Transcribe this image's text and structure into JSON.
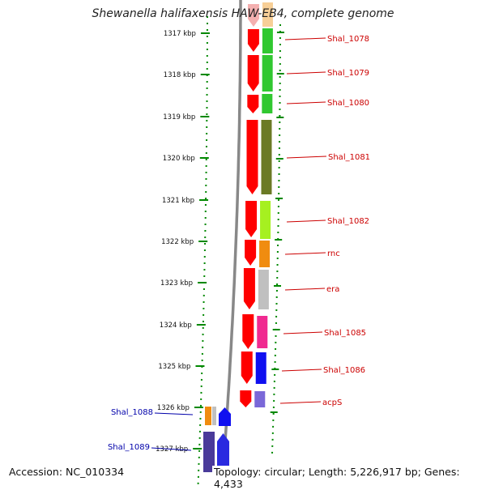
{
  "title": "Shewanella halifaxensis HAW-EB4, complete genome",
  "accession": "Accession: NC_010334",
  "summary": "Topology: circular; Length: 5,226,917 bp; Genes: 4,433",
  "scale_ticks": [
    "1317 kbp",
    "1318 kbp",
    "1319 kbp",
    "1320 kbp",
    "1321 kbp",
    "1322 kbp",
    "1323 kbp",
    "1324 kbp",
    "1325 kbp",
    "1326 kbp",
    "1327 kbp"
  ],
  "genes": [
    {
      "name": "Shal_1078",
      "color": "#30c830",
      "strand": "forward"
    },
    {
      "name": "Shal_1079",
      "color": "#30c830",
      "strand": "forward"
    },
    {
      "name": "Shal_1080",
      "color": "#30c830",
      "strand": "forward"
    },
    {
      "name": "Shal_1081",
      "color": "#6b7a25",
      "strand": "forward"
    },
    {
      "name": "Shal_1082",
      "color": "#a6f020",
      "strand": "forward"
    },
    {
      "name": "rnc",
      "color": "#f08c10",
      "strand": "forward"
    },
    {
      "name": "era",
      "color": "#c0c0c0",
      "strand": "forward"
    },
    {
      "name": "Shal_1085",
      "color": "#f02a90",
      "strand": "forward"
    },
    {
      "name": "Shal_1086",
      "color": "#1010f0",
      "strand": "forward"
    },
    {
      "name": "acpS",
      "color": "#7a68d8",
      "strand": "forward"
    },
    {
      "name": "Shal_1088",
      "color": "#1010f0",
      "strand": "reverse"
    },
    {
      "name": "Shal_1089",
      "color": "#2a2ae0",
      "strand": "reverse"
    }
  ],
  "colors": {
    "forward_label": "#cc0000",
    "reverse_label": "#0000aa",
    "cds_strand": "#ff0000",
    "tick": "#008800",
    "backbone": "#888888"
  }
}
